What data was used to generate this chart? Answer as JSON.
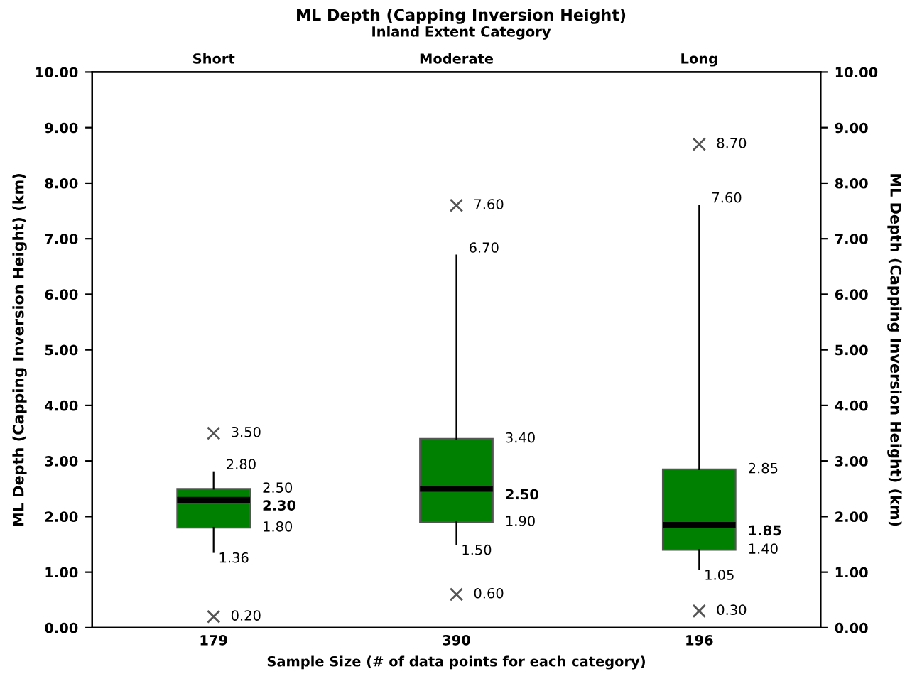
{
  "chart_data": {
    "type": "box",
    "title": "ML Depth (Capping Inversion Height)",
    "subtitle": "Inland Extent Category",
    "xlabel": "Sample Size (# of data points for each category)",
    "ylabel": "ML Depth (Capping Inversion Height) (km)",
    "y2label": "ML Depth (Capping Inversion Height) (km)",
    "categories": [
      "179",
      "390",
      "196"
    ],
    "annotations": [
      "Short",
      "Moderate",
      "Long",
      "3.50",
      "0.20",
      "2.80",
      "2.50",
      "2.30",
      "1.80",
      "1.36",
      "7.60",
      "0.60",
      "6.70",
      "3.40",
      "2.50",
      "1.90",
      "1.50",
      "8.70",
      "0.30",
      "7.60",
      "2.85",
      "1.85",
      "1.40",
      "1.05"
    ],
    "color": "#008000",
    "boxes": [
      {
        "low": 1.36,
        "q1": 1.8,
        "median": 2.3,
        "q3": 2.5,
        "high": 2.8,
        "outliers": [
          3.5,
          0.2
        ]
      },
      {
        "low": 1.5,
        "q1": 1.9,
        "median": 2.5,
        "q3": 3.4,
        "high": 6.7,
        "outliers": [
          7.6,
          0.6
        ]
      },
      {
        "low": 1.05,
        "q1": 1.4,
        "median": 1.85,
        "q3": 2.85,
        "high": 7.6,
        "outliers": [
          8.7,
          0.3
        ]
      }
    ],
    "ylim": [
      0,
      10
    ],
    "y2lim": [
      0,
      10
    ],
    "yticks": [
      {
        "value": 0,
        "label": "0.00"
      },
      {
        "value": 1,
        "label": "1.00"
      },
      {
        "value": 2,
        "label": "2.00"
      },
      {
        "value": 3,
        "label": "3.00"
      },
      {
        "value": 4,
        "label": "4.00"
      },
      {
        "value": 5,
        "label": "5.00"
      },
      {
        "value": 6,
        "label": "6.00"
      },
      {
        "value": 7,
        "label": "7.00"
      },
      {
        "value": 8,
        "label": "8.00"
      },
      {
        "value": 9,
        "label": "9.00"
      },
      {
        "value": 10,
        "label": "10.00"
      }
    ],
    "y2ticks": [
      {
        "value": 0,
        "label": "0.00"
      },
      {
        "value": 1,
        "label": "1.00"
      },
      {
        "value": 2,
        "label": "2.00"
      },
      {
        "value": 3,
        "label": "3.00"
      },
      {
        "value": 4,
        "label": "4.00"
      },
      {
        "value": 5,
        "label": "5.00"
      },
      {
        "value": 6,
        "label": "6.00"
      },
      {
        "value": 7,
        "label": "7.00"
      },
      {
        "value": 8,
        "label": "8.00"
      },
      {
        "value": 9,
        "label": "9.00"
      },
      {
        "value": 10,
        "label": "10.00"
      }
    ],
    "grid": false,
    "legend": false
  }
}
